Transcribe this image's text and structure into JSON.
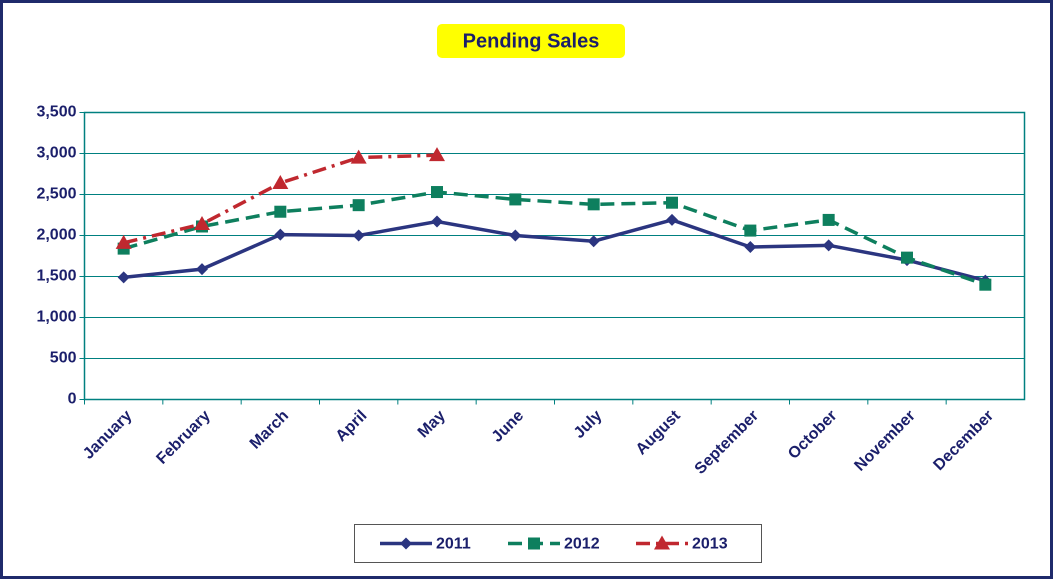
{
  "chart_data": {
    "type": "line",
    "title": "Pending Sales",
    "categories": [
      "January",
      "February",
      "March",
      "April",
      "May",
      "June",
      "July",
      "August",
      "September",
      "October",
      "November",
      "December"
    ],
    "series": [
      {
        "name": "2011",
        "color": "#2b3580",
        "marker": "diamond",
        "dash": "solid",
        "values": [
          1490,
          1590,
          2010,
          2000,
          2170,
          2000,
          1930,
          2190,
          1860,
          1880,
          1700,
          1450
        ]
      },
      {
        "name": "2012",
        "color": "#0e7f5e",
        "marker": "square",
        "dash": "dashed",
        "values": [
          1840,
          2110,
          2290,
          2370,
          2530,
          2440,
          2380,
          2400,
          2060,
          2190,
          1730,
          1400
        ]
      },
      {
        "name": "2013",
        "color": "#c0282f",
        "marker": "triangle",
        "dash": "dashdot",
        "values": [
          1910,
          2140,
          2640,
          2950,
          2980,
          null,
          null,
          null,
          null,
          null,
          null,
          null
        ]
      }
    ],
    "ylim": [
      0,
      3500
    ],
    "yticks": [
      0,
      500,
      {
        "value": 1000,
        "label": "1,000"
      },
      {
        "value": 1500,
        "label": "1,500"
      },
      {
        "value": 2000,
        "label": "2,000"
      },
      {
        "value": 2500,
        "label": "2,500"
      },
      {
        "value": 3000,
        "label": "3,000"
      },
      {
        "value": 3500,
        "label": "3,500"
      }
    ],
    "grid": true,
    "legend": "bottom"
  }
}
